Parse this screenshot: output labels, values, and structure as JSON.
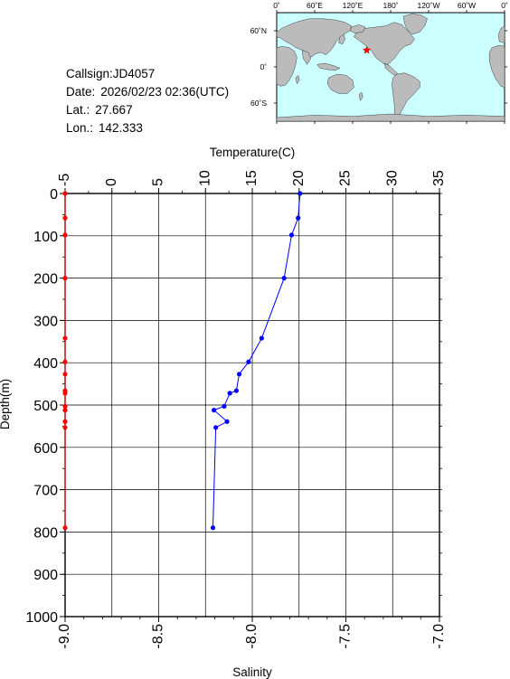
{
  "info": {
    "callsign_label": "Callsign:",
    "callsign": "JD4057",
    "date_label": "Date:",
    "date": "2026/02/23 02:36(UTC)",
    "lat_label": "Lat.:",
    "lat": "27.667",
    "lon_label": "Lon.:",
    "lon": "142.333"
  },
  "map": {
    "lon_labels": [
      "0˚",
      "60˚E",
      "120˚E",
      "180˚",
      "120˚W",
      "60˚W",
      "0˚"
    ],
    "lat_labels": [
      "60˚N",
      "0˚",
      "60˚S"
    ],
    "marker_lat": 27.667,
    "marker_lon": 142.333,
    "ocean_color": "#ccffff",
    "land_color": "#bbbbbb",
    "marker_color": "#ff0000"
  },
  "chart_data": {
    "type": "line",
    "top_axis_label": "Temperature(C)",
    "bottom_axis_label": "Salinity",
    "left_axis_label": "Depth(m)",
    "temperature_ticks": [
      "-5",
      "0",
      "5",
      "10",
      "15",
      "20",
      "25",
      "30",
      "35"
    ],
    "salinity_ticks": [
      "-9.0",
      "-8.5",
      "-8.0",
      "-7.5",
      "-7.0"
    ],
    "depth_ticks": [
      "0",
      "100",
      "200",
      "300",
      "400",
      "500",
      "600",
      "700",
      "800",
      "900",
      "1000"
    ],
    "xlim_temperature": [
      -5,
      35
    ],
    "xlim_salinity": [
      -9.0,
      -7.0
    ],
    "ylim_depth": [
      0,
      1000
    ],
    "grid": true,
    "temperature_color": "#0000ff",
    "salinity_color": "#ff0000",
    "temperature": [
      {
        "t": 20.1,
        "d": 0
      },
      {
        "t": 19.9,
        "d": 58
      },
      {
        "t": 19.2,
        "d": 98
      },
      {
        "t": 18.4,
        "d": 200
      },
      {
        "t": 16.0,
        "d": 342
      },
      {
        "t": 14.6,
        "d": 398
      },
      {
        "t": 13.6,
        "d": 427
      },
      {
        "t": 13.3,
        "d": 466
      },
      {
        "t": 12.6,
        "d": 472
      },
      {
        "t": 12.0,
        "d": 503
      },
      {
        "t": 10.9,
        "d": 512
      },
      {
        "t": 12.3,
        "d": 539
      },
      {
        "t": 11.1,
        "d": 553
      },
      {
        "t": 10.8,
        "d": 790
      }
    ],
    "salinity": [
      {
        "s": -9.0,
        "d": 0
      },
      {
        "s": -9.0,
        "d": 58
      },
      {
        "s": -9.0,
        "d": 98
      },
      {
        "s": -9.0,
        "d": 200
      },
      {
        "s": -9.0,
        "d": 342
      },
      {
        "s": -9.0,
        "d": 398
      },
      {
        "s": -9.0,
        "d": 427
      },
      {
        "s": -9.0,
        "d": 466
      },
      {
        "s": -9.0,
        "d": 472
      },
      {
        "s": -9.0,
        "d": 503
      },
      {
        "s": -9.0,
        "d": 512
      },
      {
        "s": -9.0,
        "d": 539
      },
      {
        "s": -9.0,
        "d": 553
      },
      {
        "s": -9.0,
        "d": 790
      }
    ]
  }
}
